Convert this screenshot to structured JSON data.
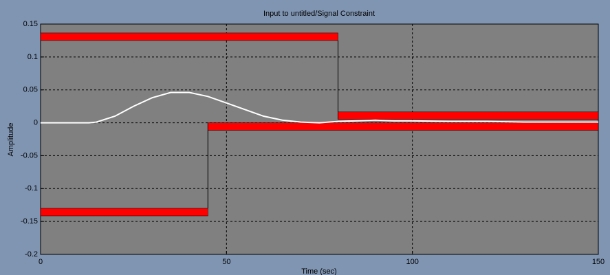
{
  "chart_data": {
    "type": "line",
    "title": "Input to untitled/Signal Constraint",
    "xlabel": "Time (sec)",
    "ylabel": "Amplitude",
    "xlim": [
      0,
      150
    ],
    "xticks": [
      0,
      50,
      100,
      150
    ],
    "ylim": [
      -0.2,
      0.15
    ],
    "yticks": [
      -0.2,
      -0.15,
      -0.1,
      -0.05,
      0,
      0.05,
      0.1,
      0.15
    ],
    "grid": true,
    "series": [
      {
        "color": "#ffffff",
        "x": [
          0,
          5,
          10,
          13,
          15,
          20,
          25,
          30,
          35,
          40,
          45,
          50,
          55,
          60,
          65,
          70,
          75,
          80,
          85,
          90,
          95,
          100,
          110,
          120,
          130,
          140,
          150
        ],
        "values": [
          0,
          0,
          0,
          0,
          0.001,
          0.01,
          0.025,
          0.038,
          0.046,
          0.046,
          0.04,
          0.03,
          0.02,
          0.01,
          0.004,
          0.001,
          0,
          0.002,
          0.003,
          0.004,
          0.003,
          0.003,
          0.002,
          0.002,
          0.001,
          0.001,
          0.001
        ]
      }
    ],
    "upper_bound": {
      "color": "#ff0000",
      "x": [
        0,
        80,
        80,
        150
      ],
      "values": [
        0.125,
        0.125,
        0.005,
        0.005
      ]
    },
    "lower_bound": {
      "color": "#ff0000",
      "x": [
        0,
        45,
        45,
        150
      ],
      "values": [
        -0.13,
        -0.13,
        0,
        0
      ]
    }
  }
}
